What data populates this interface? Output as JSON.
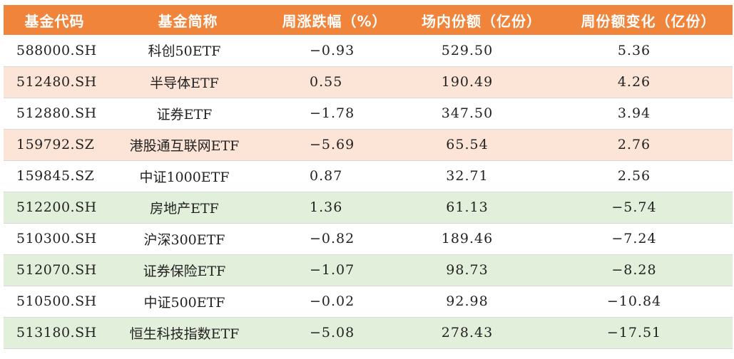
{
  "header": {
    "code": "基金代码",
    "name": "基金简称",
    "weekly_change": "周涨跌幅（%）",
    "shares": "场内份额（亿份）",
    "share_change": "周份额变化（亿份）"
  },
  "row_colors": {
    "header": "#f0843a",
    "white": "#ffffff",
    "peach": "#fce4d6",
    "green": "#e2efda"
  },
  "rows": [
    {
      "code": "588000.SH",
      "name": "科创50ETF",
      "weekly_change": "−0.93",
      "shares": "529.50",
      "share_change": "5.36"
    },
    {
      "code": "512480.SH",
      "name": "半导体ETF",
      "weekly_change": "0.55",
      "shares": "190.49",
      "share_change": "4.26"
    },
    {
      "code": "512880.SH",
      "name": "证券ETF",
      "weekly_change": "−1.78",
      "shares": "347.50",
      "share_change": "3.94"
    },
    {
      "code": "159792.SZ",
      "name": "港股通互联网ETF",
      "weekly_change": "−5.69",
      "shares": "65.54",
      "share_change": "2.76"
    },
    {
      "code": "159845.SZ",
      "name": "中证1000ETF",
      "weekly_change": "0.87",
      "shares": "32.71",
      "share_change": "2.56"
    },
    {
      "code": "512200.SH",
      "name": "房地产ETF",
      "weekly_change": "1.36",
      "shares": "61.13",
      "share_change": "−5.74"
    },
    {
      "code": "510300.SH",
      "name": "沪深300ETF",
      "weekly_change": "−0.82",
      "shares": "189.46",
      "share_change": "−7.24"
    },
    {
      "code": "512070.SH",
      "name": "证券保险ETF",
      "weekly_change": "−1.07",
      "shares": "98.73",
      "share_change": "−8.28"
    },
    {
      "code": "510500.SH",
      "name": "中证500ETF",
      "weekly_change": "−0.02",
      "shares": "92.98",
      "share_change": "−10.84"
    },
    {
      "code": "513180.SH",
      "name": "恒生科技指数ETF",
      "weekly_change": "−5.08",
      "shares": "278.43",
      "share_change": "−17.51"
    }
  ]
}
